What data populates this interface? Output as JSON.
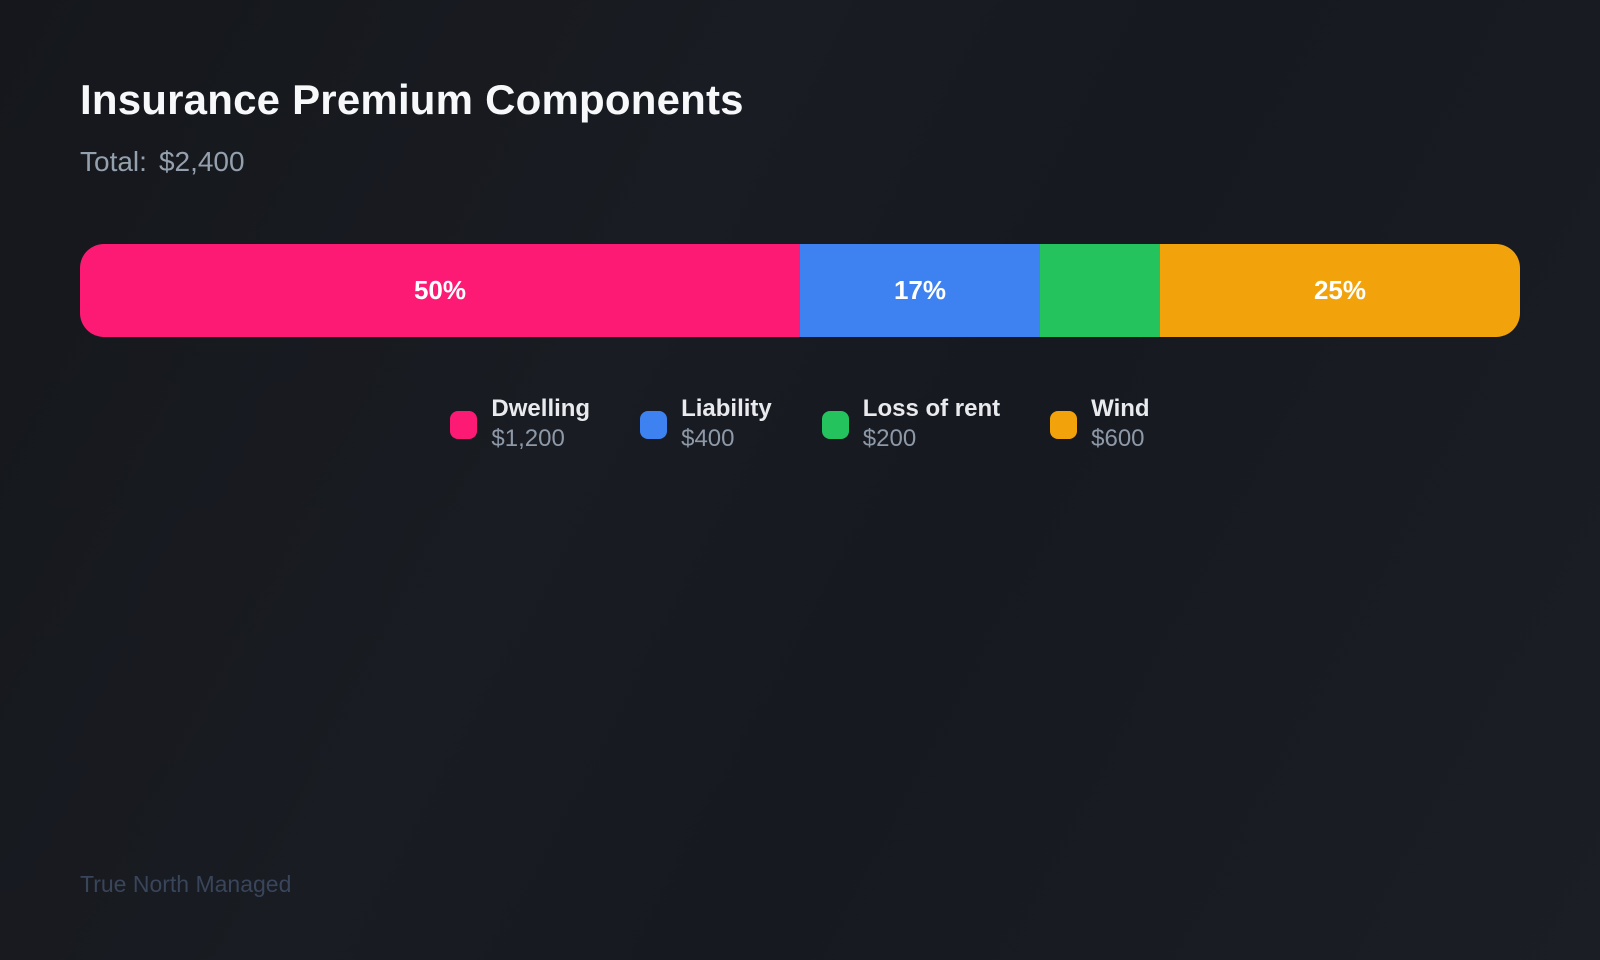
{
  "header": {
    "title": "Insurance Premium Components",
    "total_label": "Total:",
    "total_value": "$2,400"
  },
  "footer": {
    "text": "True North Managed"
  },
  "theme": {
    "background": "#171a20",
    "title_color": "#f7f8f9",
    "subtitle_color": "#94a0ad",
    "legend_value_color": "#8e99a8",
    "watermark_color": "#39455a"
  },
  "chart_data": {
    "type": "bar",
    "variant": "horizontal-stacked-composition",
    "title": "Insurance Premium Components",
    "total": 2400,
    "total_display": "$2,400",
    "categories": [
      "Dwelling",
      "Liability",
      "Loss of rent",
      "Wind"
    ],
    "values": [
      1200,
      400,
      200,
      600
    ],
    "value_displays": [
      "$1,200",
      "$400",
      "$200",
      "$600"
    ],
    "percents": [
      50,
      16.67,
      8.33,
      25
    ],
    "percent_labels": [
      "50%",
      "17%",
      "",
      "25%"
    ],
    "segment_widths": [
      "50%",
      "16.667%",
      "8.333%",
      "25%"
    ],
    "colors": [
      "#fd1a75",
      "#3d82f0",
      "#24c35e",
      "#f2a30b"
    ],
    "legend_position": "bottom",
    "axes": "none",
    "grid": false
  }
}
